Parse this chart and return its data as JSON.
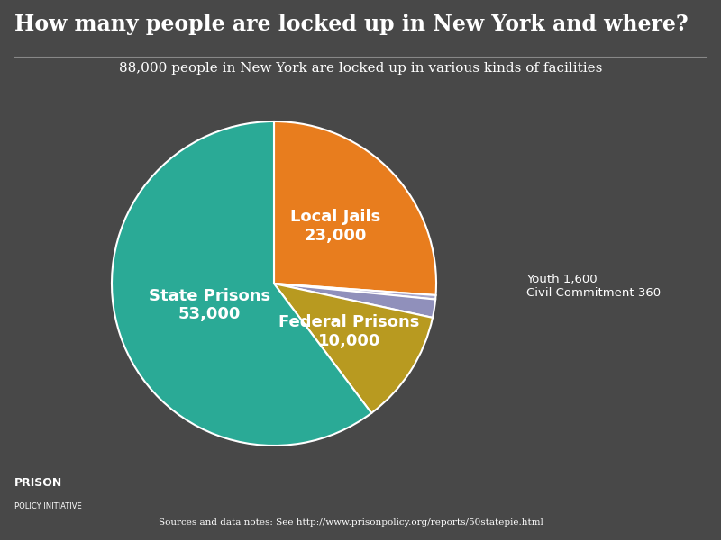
{
  "title": "How many people are locked up in New York and where?",
  "subtitle": "88,000 people in New York are locked up in various kinds of facilities",
  "background_color": "#484848",
  "slices": [
    {
      "label": "Local Jails",
      "value": 23000,
      "color": "#e87d1e"
    },
    {
      "label": "Civil Commitment",
      "value": 360,
      "color": "#a8a8cc"
    },
    {
      "label": "Youth",
      "value": 1600,
      "color": "#9090bb"
    },
    {
      "label": "Federal Prisons",
      "value": 10000,
      "color": "#b89a20"
    },
    {
      "label": "State Prisons",
      "value": 53000,
      "color": "#2aaa96"
    }
  ],
  "wedge_edge_color": "#ffffff",
  "text_color": "#ffffff",
  "title_fontsize": 17,
  "subtitle_fontsize": 11,
  "label_fontsize": 13,
  "footer_text": "Sources and data notes: See http://www.prisonpolicy.org/reports/50statepie.html",
  "logo_line1": "PRISON",
  "logo_line2": "POLICY INITIATIVE",
  "external_label": "Youth 1,600\nCivil Commitment 360"
}
